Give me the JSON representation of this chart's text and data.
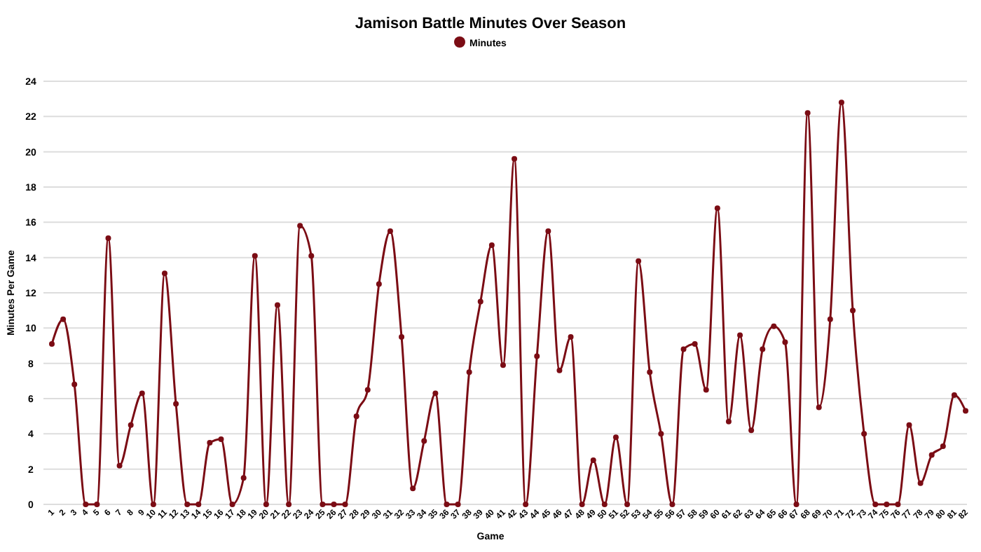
{
  "chart_data": {
    "type": "line",
    "title": "Jamison Battle Minutes Over Season",
    "xlabel": "Game",
    "ylabel": "Minutes Per Game",
    "categories": [
      "1",
      "2",
      "3",
      "4",
      "5",
      "6",
      "7",
      "8",
      "9",
      "10",
      "11",
      "12",
      "13",
      "14",
      "15",
      "16",
      "17",
      "18",
      "19",
      "20",
      "21",
      "22",
      "23",
      "24",
      "25",
      "26",
      "27",
      "28",
      "29",
      "30",
      "31",
      "32",
      "33",
      "34",
      "35",
      "36",
      "37",
      "38",
      "39",
      "40",
      "41",
      "42",
      "43",
      "44",
      "45",
      "46",
      "47",
      "48",
      "49",
      "50",
      "51",
      "52",
      "53",
      "54",
      "55",
      "56",
      "57",
      "58",
      "59",
      "60",
      "61",
      "62",
      "63",
      "64",
      "65",
      "66",
      "67",
      "68",
      "69",
      "70",
      "71",
      "72",
      "73",
      "74",
      "75",
      "76",
      "77",
      "78",
      "79",
      "80",
      "81",
      "82"
    ],
    "series": [
      {
        "name": "Minutes",
        "color": "#7b0c14",
        "values": [
          9.1,
          10.5,
          6.8,
          0,
          0,
          15.1,
          2.2,
          4.5,
          6.3,
          0,
          13.1,
          5.7,
          0,
          0,
          3.5,
          3.7,
          0,
          1.5,
          14.1,
          0,
          11.3,
          0,
          15.8,
          14.1,
          0,
          0,
          0,
          5,
          6.5,
          12.5,
          15.5,
          9.5,
          0.9,
          3.6,
          6.3,
          0,
          0,
          7.5,
          11.5,
          14.7,
          7.9,
          19.6,
          0,
          8.4,
          15.5,
          7.6,
          9.5,
          0,
          2.5,
          0,
          3.8,
          0,
          13.8,
          7.5,
          4,
          0,
          8.8,
          9.1,
          6.5,
          16.8,
          4.7,
          9.6,
          4.2,
          8.8,
          10.1,
          9.2,
          0,
          22.2,
          5.5,
          10.5,
          22.8,
          11,
          4,
          0,
          0,
          0,
          4.5,
          1.2,
          2.8,
          3.3,
          6.2,
          5.3
        ]
      }
    ],
    "ylim": [
      0,
      24
    ],
    "yticks": [
      0,
      2,
      4,
      6,
      8,
      10,
      12,
      14,
      16,
      18,
      20,
      22,
      24
    ],
    "grid": "y",
    "legend": "top",
    "marker": "circle",
    "line_style": "solid"
  }
}
